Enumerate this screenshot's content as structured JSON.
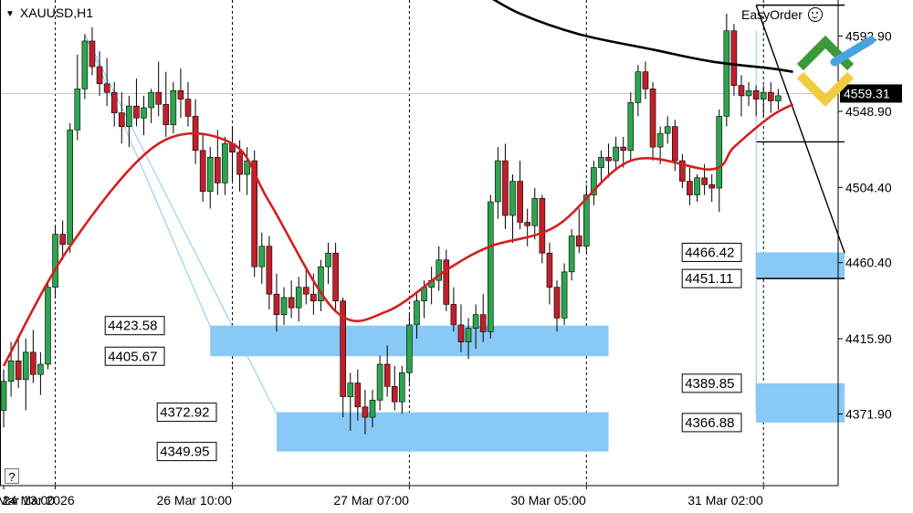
{
  "header": {
    "symbol_label": "XAUUSD,H1"
  },
  "panel": {
    "title": "EasyOrder",
    "help_label": "?"
  },
  "colors": {
    "bull": "#2ea44f",
    "bear": "#c0202a",
    "ma_fast": "#d42020",
    "ma_slow": "#000000",
    "zone_fill": "#89c9f5",
    "fib_line": "#88c8f0",
    "grid": "#000000",
    "background": "#ffffff"
  },
  "chart_data": {
    "type": "candlestick",
    "title": "XAUUSD,H1",
    "price_axis": {
      "min": 4330,
      "max": 4614,
      "ticks": [
        4592.9,
        4548.9,
        4504.4,
        4460.4,
        4415.9,
        4371.9
      ],
      "tick_labels": [
        "4592.90",
        "4548.90",
        "4504.40",
        "4460.40",
        "4415.90",
        "4371.90"
      ],
      "current_price": "4559.31"
    },
    "time_axis": {
      "labels": [
        "24 Mar 2026",
        "25 Mar 13:00",
        "26 Mar 10:00",
        "27 Mar 07:00",
        "30 Mar 05:00",
        "31 Mar 02:00"
      ],
      "label_bars": [
        0,
        21,
        42,
        63,
        84,
        105
      ],
      "session_dividers": [
        7,
        31,
        55,
        79,
        103
      ]
    },
    "candles": [
      [
        4374,
        4398,
        4364,
        4391
      ],
      [
        4391,
        4414,
        4382,
        4403
      ],
      [
        4403,
        4418,
        4387,
        4392
      ],
      [
        4392,
        4416,
        4374,
        4408
      ],
      [
        4408,
        4421,
        4390,
        4395
      ],
      [
        4395,
        4408,
        4383,
        4401
      ],
      [
        4401,
        4450,
        4398,
        4446
      ],
      [
        4446,
        4482,
        4440,
        4477
      ],
      [
        4477,
        4485,
        4462,
        4471
      ],
      [
        4471,
        4542,
        4466,
        4538
      ],
      [
        4538,
        4582,
        4532,
        4562
      ],
      [
        4562,
        4594,
        4556,
        4590
      ],
      [
        4590,
        4598,
        4570,
        4575
      ],
      [
        4575,
        4584,
        4558,
        4565
      ],
      [
        4565,
        4580,
        4552,
        4560
      ],
      [
        4560,
        4566,
        4540,
        4548
      ],
      [
        4548,
        4560,
        4530,
        4540
      ],
      [
        4540,
        4558,
        4528,
        4552
      ],
      [
        4552,
        4568,
        4540,
        4545
      ],
      [
        4545,
        4558,
        4535,
        4551
      ],
      [
        4551,
        4562,
        4542,
        4560
      ],
      [
        4560,
        4578,
        4546,
        4553
      ],
      [
        4553,
        4572,
        4534,
        4541
      ],
      [
        4541,
        4566,
        4536,
        4561
      ],
      [
        4561,
        4574,
        4545,
        4556
      ],
      [
        4556,
        4566,
        4540,
        4546
      ],
      [
        4546,
        4556,
        4518,
        4526
      ],
      [
        4526,
        4536,
        4496,
        4502
      ],
      [
        4502,
        4528,
        4492,
        4522
      ],
      [
        4522,
        4538,
        4500,
        4507
      ],
      [
        4507,
        4534,
        4500,
        4530
      ],
      [
        4530,
        4540,
        4508,
        4525
      ],
      [
        4525,
        4532,
        4502,
        4512
      ],
      [
        4512,
        4528,
        4500,
        4520
      ],
      [
        4520,
        4526,
        4452,
        4458
      ],
      [
        4458,
        4478,
        4448,
        4470
      ],
      [
        4470,
        4476,
        4433,
        4442
      ],
      [
        4442,
        4454,
        4420,
        4430
      ],
      [
        4430,
        4446,
        4424,
        4440
      ],
      [
        4440,
        4450,
        4428,
        4434
      ],
      [
        4434,
        4452,
        4426,
        4446
      ],
      [
        4446,
        4458,
        4436,
        4442
      ],
      [
        4442,
        4454,
        4430,
        4438
      ],
      [
        4438,
        4462,
        4432,
        4458
      ],
      [
        4458,
        4472,
        4448,
        4466
      ],
      [
        4466,
        4472,
        4432,
        4438
      ],
      [
        4438,
        4440,
        4370,
        4382
      ],
      [
        4382,
        4396,
        4362,
        4390
      ],
      [
        4390,
        4398,
        4368,
        4376
      ],
      [
        4376,
        4386,
        4360,
        4370
      ],
      [
        4370,
        4386,
        4364,
        4380
      ],
      [
        4380,
        4406,
        4374,
        4401
      ],
      [
        4401,
        4412,
        4382,
        4388
      ],
      [
        4388,
        4400,
        4374,
        4379
      ],
      [
        4379,
        4400,
        4372,
        4396
      ],
      [
        4396,
        4430,
        4390,
        4424
      ],
      [
        4424,
        4442,
        4416,
        4438
      ],
      [
        4438,
        4450,
        4428,
        4446
      ],
      [
        4446,
        4458,
        4436,
        4450
      ],
      [
        4450,
        4470,
        4444,
        4462
      ],
      [
        4462,
        4468,
        4432,
        4436
      ],
      [
        4436,
        4446,
        4420,
        4424
      ],
      [
        4424,
        4436,
        4408,
        4414
      ],
      [
        4414,
        4428,
        4404,
        4422
      ],
      [
        4422,
        4436,
        4410,
        4430
      ],
      [
        4430,
        4442,
        4414,
        4420
      ],
      [
        4420,
        4500,
        4416,
        4496
      ],
      [
        4496,
        4528,
        4486,
        4520
      ],
      [
        4520,
        4530,
        4480,
        4488
      ],
      [
        4488,
        4512,
        4472,
        4508
      ],
      [
        4508,
        4520,
        4480,
        4484
      ],
      [
        4484,
        4492,
        4470,
        4482
      ],
      [
        4482,
        4504,
        4474,
        4498
      ],
      [
        4498,
        4500,
        4460,
        4466
      ],
      [
        4466,
        4472,
        4436,
        4446
      ],
      [
        4446,
        4450,
        4420,
        4428
      ],
      [
        4428,
        4460,
        4424,
        4455
      ],
      [
        4455,
        4480,
        4450,
        4476
      ],
      [
        4476,
        4492,
        4466,
        4470
      ],
      [
        4470,
        4506,
        4466,
        4500
      ],
      [
        4500,
        4520,
        4494,
        4516
      ],
      [
        4516,
        4526,
        4506,
        4522
      ],
      [
        4522,
        4530,
        4510,
        4520
      ],
      [
        4520,
        4534,
        4514,
        4528
      ],
      [
        4528,
        4534,
        4516,
        4526
      ],
      [
        4526,
        4560,
        4520,
        4554
      ],
      [
        4554,
        4576,
        4546,
        4572
      ],
      [
        4572,
        4578,
        4556,
        4562
      ],
      [
        4562,
        4566,
        4520,
        4528
      ],
      [
        4528,
        4540,
        4518,
        4536
      ],
      [
        4536,
        4546,
        4530,
        4540
      ],
      [
        4540,
        4544,
        4514,
        4520
      ],
      [
        4520,
        4524,
        4504,
        4508
      ],
      [
        4508,
        4516,
        4494,
        4500
      ],
      [
        4500,
        4512,
        4496,
        4510
      ],
      [
        4510,
        4518,
        4500,
        4506
      ],
      [
        4506,
        4512,
        4496,
        4504
      ],
      [
        4504,
        4550,
        4490,
        4546
      ],
      [
        4546,
        4606,
        4540,
        4596
      ],
      [
        4596,
        4600,
        4558,
        4564
      ],
      [
        4564,
        4570,
        4546,
        4558
      ],
      [
        4558,
        4566,
        4552,
        4561
      ],
      [
        4561,
        4564,
        4546,
        4556
      ],
      [
        4556,
        4564,
        4546,
        4560
      ],
      [
        4560,
        4566,
        4548,
        4555
      ],
      [
        4555,
        4562,
        4550,
        4558
      ]
    ],
    "moving_averages": [
      {
        "name": "ma-fast",
        "bars": [
          0,
          9,
          21,
          31,
          36,
          45,
          52,
          60,
          66,
          75,
          85,
          96,
          99,
          104,
          107
        ],
        "values": [
          4400,
          4470,
          4530,
          4530,
          4496,
          4432,
          4432,
          4456,
          4470,
          4482,
          4520,
          4515,
          4528,
          4546,
          4553
        ]
      },
      {
        "name": "ma-slow",
        "bars": [
          60,
          64,
          70,
          78,
          88,
          96,
          104,
          107
        ],
        "values": [
          4640,
          4620,
          4606,
          4594,
          4585,
          4578,
          4574,
          4572
        ]
      }
    ],
    "zones": [
      {
        "top": "4423.58",
        "bottom": "4405.67",
        "from_bar": 28,
        "to_bar": 82
      },
      {
        "top": "4372.92",
        "bottom": "4349.95",
        "from_bar": 37,
        "to_bar": 82
      },
      {
        "top": "4466.42",
        "bottom": "4451.11",
        "from_bar": 102,
        "to_bar": 114
      },
      {
        "top": "4389.85",
        "bottom": "4366.88",
        "from_bar": 102,
        "to_bar": 114
      }
    ],
    "price_lines": [
      {
        "price": 4531,
        "from_bar": 102,
        "to_bar": 114
      },
      {
        "price": 4611,
        "from_bar": 102,
        "to_bar": 114
      }
    ],
    "trend_lines": [
      {
        "from": [
          11,
          4594
        ],
        "to": [
          37,
          4372
        ],
        "role": "fib"
      },
      {
        "from": [
          11,
          4594
        ],
        "to": [
          28,
          4423
        ],
        "role": "fib"
      },
      {
        "from": [
          102,
          4611
        ],
        "to": [
          114,
          4466
        ],
        "role": "dark"
      },
      {
        "from": [
          102,
          4596
        ],
        "to": [
          102,
          4372
        ],
        "role": "fib"
      }
    ]
  }
}
